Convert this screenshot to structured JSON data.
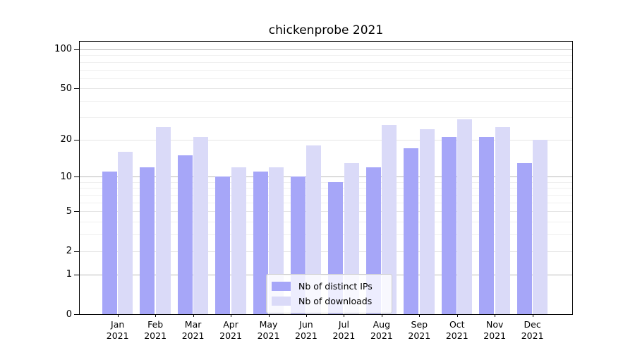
{
  "chart_data": {
    "type": "bar",
    "title": "chickenprobe 2021",
    "x_month_labels": [
      "Jan",
      "Feb",
      "Mar",
      "Apr",
      "May",
      "Jun",
      "Jul",
      "Aug",
      "Sep",
      "Oct",
      "Nov",
      "Dec"
    ],
    "x_year_label": "2021",
    "series": [
      {
        "name": "Nb of distinct IPs",
        "color": "#a6a6f8",
        "values": [
          11,
          12,
          15,
          10,
          11,
          10,
          9,
          12,
          17,
          21,
          21,
          13
        ]
      },
      {
        "name": "Nb of downloads",
        "color": "#dadaf8",
        "values": [
          16,
          25,
          21,
          12,
          12,
          18,
          13,
          26,
          24,
          29,
          25,
          20
        ]
      }
    ],
    "y_axis": {
      "scale": "symlog",
      "ticks": [
        100,
        50,
        20,
        10,
        5,
        2,
        1,
        0
      ],
      "range": [
        0,
        115
      ]
    },
    "grid": {
      "major": [
        1,
        10,
        100
      ],
      "mid": [
        2,
        5,
        20,
        50
      ],
      "minor": [
        3,
        4,
        6,
        7,
        8,
        9,
        30,
        40,
        60,
        70,
        80,
        90
      ]
    },
    "legend": {
      "position": "lower-center",
      "items": [
        "Nb of distinct IPs",
        "Nb of downloads"
      ]
    }
  }
}
